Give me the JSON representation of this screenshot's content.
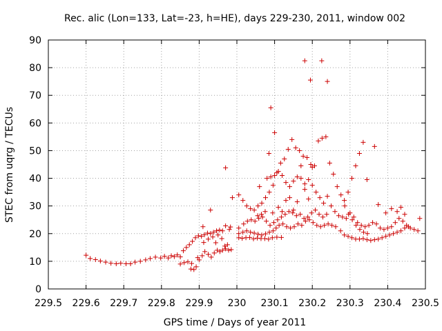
{
  "chart_data": {
    "type": "scatter",
    "title": "Rec. alic (Lon=133, Lat=-23, h=HE), days 229-230, 2011, window 002",
    "xlabel": "GPS time / Days of year 2011",
    "ylabel": "STEC from uqrg / TECUs",
    "xlim": [
      229.5,
      230.5
    ],
    "ylim": [
      0,
      90
    ],
    "x_ticks": [
      "229.5",
      "229.6",
      "229.7",
      "229.8",
      "229.9",
      "230",
      "230.1",
      "230.2",
      "230.3",
      "230.4",
      "230.5"
    ],
    "y_ticks": [
      "0",
      "10",
      "20",
      "30",
      "40",
      "50",
      "60",
      "70",
      "80",
      "90"
    ],
    "grid": true,
    "legend": "none",
    "marker": "+",
    "color": "#cc0000",
    "points": [
      [
        229.6,
        12.2
      ],
      [
        229.611,
        11.0
      ],
      [
        229.625,
        10.6
      ],
      [
        229.638,
        10.1
      ],
      [
        229.652,
        9.7
      ],
      [
        229.666,
        9.3
      ],
      [
        229.68,
        9.1
      ],
      [
        229.692,
        9.3
      ],
      [
        229.706,
        9.1
      ],
      [
        229.718,
        9.1
      ],
      [
        229.73,
        9.7
      ],
      [
        229.744,
        10.0
      ],
      [
        229.758,
        10.5
      ],
      [
        229.77,
        11.0
      ],
      [
        229.784,
        11.5
      ],
      [
        229.798,
        11.2
      ],
      [
        229.808,
        11.8
      ],
      [
        229.818,
        11.2
      ],
      [
        229.826,
        12.0
      ],
      [
        229.834,
        11.7
      ],
      [
        229.842,
        12.3
      ],
      [
        229.85,
        11.6
      ],
      [
        229.858,
        13.8
      ],
      [
        229.866,
        15.0
      ],
      [
        229.874,
        16.0
      ],
      [
        229.882,
        17.2
      ],
      [
        229.89,
        18.5
      ],
      [
        229.898,
        19.2
      ],
      [
        229.906,
        19.0
      ],
      [
        229.914,
        19.6
      ],
      [
        229.922,
        20.2
      ],
      [
        229.93,
        20.0
      ],
      [
        229.938,
        20.5
      ],
      [
        229.946,
        21.0
      ],
      [
        229.954,
        21.3
      ],
      [
        229.962,
        21.0
      ],
      [
        229.85,
        9.0
      ],
      [
        229.86,
        9.5
      ],
      [
        229.87,
        9.8
      ],
      [
        229.878,
        7.2
      ],
      [
        229.886,
        7.0
      ],
      [
        229.892,
        8.0
      ],
      [
        229.9,
        10.5
      ],
      [
        229.908,
        12.0
      ],
      [
        229.915,
        13.5
      ],
      [
        229.924,
        12.5
      ],
      [
        229.932,
        11.5
      ],
      [
        229.94,
        13.0
      ],
      [
        229.948,
        14.0
      ],
      [
        229.955,
        13.5
      ],
      [
        229.962,
        14.0
      ],
      [
        229.97,
        14.5
      ],
      [
        229.978,
        14.0
      ],
      [
        229.88,
        9.2
      ],
      [
        229.896,
        11.3
      ],
      [
        229.912,
        16.8
      ],
      [
        229.924,
        18.0
      ],
      [
        229.936,
        18.8
      ],
      [
        229.944,
        16.7
      ],
      [
        229.95,
        19.5
      ],
      [
        229.96,
        18.2
      ],
      [
        229.968,
        15.5
      ],
      [
        229.975,
        16.0
      ],
      [
        229.985,
        14.2
      ],
      [
        229.91,
        22.5
      ],
      [
        229.93,
        28.5
      ],
      [
        229.97,
        22.8
      ],
      [
        229.98,
        21.5
      ],
      [
        229.983,
        22.4
      ],
      [
        229.988,
        33.0
      ],
      [
        229.97,
        43.8
      ],
      [
        230.005,
        18.5
      ],
      [
        230.014,
        18.3
      ],
      [
        230.024,
        18.5
      ],
      [
        230.034,
        18.6
      ],
      [
        230.044,
        18.1
      ],
      [
        230.054,
        18.4
      ],
      [
        230.064,
        18.2
      ],
      [
        230.074,
        18.2
      ],
      [
        230.084,
        18.0
      ],
      [
        230.094,
        18.5
      ],
      [
        230.106,
        18.7
      ],
      [
        230.118,
        18.6
      ],
      [
        230.005,
        20.0
      ],
      [
        230.016,
        20.5
      ],
      [
        230.026,
        21.0
      ],
      [
        230.036,
        20.5
      ],
      [
        230.046,
        20.2
      ],
      [
        230.056,
        19.8
      ],
      [
        230.066,
        19.5
      ],
      [
        230.076,
        19.9
      ],
      [
        230.086,
        20.5
      ],
      [
        230.096,
        21.0
      ],
      [
        230.104,
        22.0
      ],
      [
        230.112,
        23.0
      ],
      [
        230.122,
        23.5
      ],
      [
        230.132,
        22.5
      ],
      [
        230.142,
        22.0
      ],
      [
        230.152,
        22.5
      ],
      [
        230.162,
        23.5
      ],
      [
        230.172,
        23.0
      ],
      [
        230.182,
        24.5
      ],
      [
        230.192,
        25.0
      ],
      [
        230.202,
        24.0
      ],
      [
        230.212,
        23.0
      ],
      [
        230.222,
        22.5
      ],
      [
        230.232,
        23.0
      ],
      [
        230.242,
        23.5
      ],
      [
        230.252,
        23.0
      ],
      [
        230.262,
        22.5
      ],
      [
        230.005,
        22.0
      ],
      [
        230.018,
        23.5
      ],
      [
        230.028,
        24.5
      ],
      [
        230.038,
        25.0
      ],
      [
        230.048,
        24.5
      ],
      [
        230.058,
        25.5
      ],
      [
        230.068,
        26.0
      ],
      [
        230.078,
        24.5
      ],
      [
        230.088,
        23.0
      ],
      [
        230.098,
        24.0
      ],
      [
        230.108,
        25.0
      ],
      [
        230.118,
        26.0
      ],
      [
        230.128,
        27.0
      ],
      [
        230.138,
        28.0
      ],
      [
        230.148,
        27.5
      ],
      [
        230.158,
        26.5
      ],
      [
        230.168,
        27.0
      ],
      [
        230.178,
        25.5
      ],
      [
        230.188,
        26.0
      ],
      [
        230.198,
        27.5
      ],
      [
        230.208,
        28.5
      ],
      [
        230.218,
        27.0
      ],
      [
        230.228,
        26.0
      ],
      [
        230.238,
        27.0
      ],
      [
        230.005,
        34.0
      ],
      [
        230.016,
        32.0
      ],
      [
        230.026,
        30.0
      ],
      [
        230.036,
        29.0
      ],
      [
        230.046,
        28.5
      ],
      [
        230.056,
        30.0
      ],
      [
        230.066,
        31.0
      ],
      [
        230.076,
        33.0
      ],
      [
        230.086,
        35.0
      ],
      [
        230.096,
        37.5
      ],
      [
        230.106,
        42.0
      ],
      [
        230.116,
        45.5
      ],
      [
        230.126,
        47.0
      ],
      [
        230.136,
        50.5
      ],
      [
        230.146,
        54.0
      ],
      [
        230.156,
        51.0
      ],
      [
        230.166,
        50.0
      ],
      [
        230.176,
        48.0
      ],
      [
        230.186,
        47.5
      ],
      [
        230.196,
        45.0
      ],
      [
        230.206,
        44.5
      ],
      [
        230.216,
        53.5
      ],
      [
        230.226,
        54.5
      ],
      [
        230.236,
        55.0
      ],
      [
        230.246,
        45.5
      ],
      [
        230.256,
        41.5
      ],
      [
        230.266,
        37.0
      ],
      [
        230.276,
        34.0
      ],
      [
        230.286,
        30.0
      ],
      [
        230.296,
        27.0
      ],
      [
        230.306,
        25.0
      ],
      [
        230.316,
        23.0
      ],
      [
        230.326,
        21.5
      ],
      [
        230.336,
        20.5
      ],
      [
        230.346,
        20.0
      ],
      [
        230.06,
        37.0
      ],
      [
        230.08,
        40.0
      ],
      [
        230.09,
        40.5
      ],
      [
        230.1,
        41.0
      ],
      [
        230.11,
        42.5
      ],
      [
        230.12,
        41.0
      ],
      [
        230.13,
        38.5
      ],
      [
        230.14,
        37.0
      ],
      [
        230.15,
        39.0
      ],
      [
        230.16,
        40.5
      ],
      [
        230.17,
        40.0
      ],
      [
        230.18,
        38.0
      ],
      [
        230.19,
        39.5
      ],
      [
        230.2,
        37.5
      ],
      [
        230.21,
        35.0
      ],
      [
        230.22,
        33.0
      ],
      [
        230.23,
        31.0
      ],
      [
        230.24,
        33.5
      ],
      [
        230.25,
        30.0
      ],
      [
        230.26,
        28.0
      ],
      [
        230.27,
        26.5
      ],
      [
        230.28,
        26.0
      ],
      [
        230.29,
        25.5
      ],
      [
        230.3,
        27.5
      ],
      [
        230.31,
        26.0
      ],
      [
        230.32,
        24.0
      ],
      [
        230.33,
        23.0
      ],
      [
        230.34,
        22.5
      ],
      [
        230.35,
        23.0
      ],
      [
        230.36,
        24.0
      ],
      [
        230.37,
        23.5
      ],
      [
        230.38,
        22.0
      ],
      [
        230.39,
        21.5
      ],
      [
        230.4,
        22.0
      ],
      [
        230.41,
        22.5
      ],
      [
        230.42,
        24.0
      ],
      [
        230.43,
        25.5
      ],
      [
        230.44,
        24.5
      ],
      [
        230.45,
        23.0
      ],
      [
        230.46,
        22.0
      ],
      [
        230.47,
        21.5
      ],
      [
        230.48,
        21.0
      ],
      [
        230.275,
        21.0
      ],
      [
        230.285,
        19.5
      ],
      [
        230.295,
        19.0
      ],
      [
        230.305,
        18.5
      ],
      [
        230.315,
        18.0
      ],
      [
        230.325,
        18.0
      ],
      [
        230.335,
        18.2
      ],
      [
        230.345,
        17.8
      ],
      [
        230.355,
        17.5
      ],
      [
        230.365,
        17.8
      ],
      [
        230.375,
        18.0
      ],
      [
        230.385,
        18.5
      ],
      [
        230.395,
        19.0
      ],
      [
        230.405,
        19.5
      ],
      [
        230.415,
        20.0
      ],
      [
        230.425,
        20.5
      ],
      [
        230.435,
        21.0
      ],
      [
        230.445,
        22.0
      ],
      [
        230.455,
        22.5
      ],
      [
        230.285,
        32.0
      ],
      [
        230.295,
        35.0
      ],
      [
        230.305,
        40.0
      ],
      [
        230.315,
        44.5
      ],
      [
        230.325,
        49.0
      ],
      [
        230.335,
        53.0
      ],
      [
        230.345,
        39.5
      ],
      [
        230.365,
        51.5
      ],
      [
        230.375,
        30.5
      ],
      [
        230.395,
        27.5
      ],
      [
        230.41,
        29.0
      ],
      [
        230.425,
        28.0
      ],
      [
        230.435,
        29.5
      ],
      [
        230.445,
        27.0
      ],
      [
        230.485,
        25.5
      ],
      [
        230.1,
        56.5
      ],
      [
        230.085,
        49.0
      ],
      [
        230.09,
        65.5
      ],
      [
        230.18,
        82.5
      ],
      [
        230.225,
        82.5
      ],
      [
        230.195,
        75.5
      ],
      [
        230.24,
        75.0
      ],
      [
        230.17,
        44.5
      ],
      [
        230.2,
        44.0
      ],
      [
        230.18,
        36.0
      ],
      [
        230.19,
        32.5
      ],
      [
        230.16,
        31.5
      ],
      [
        230.15,
        28.5
      ],
      [
        230.14,
        33.0
      ],
      [
        230.12,
        28.0
      ],
      [
        230.13,
        32.0
      ],
      [
        230.11,
        29.5
      ],
      [
        230.095,
        27.5
      ],
      [
        230.075,
        28.0
      ],
      [
        230.065,
        27.0
      ],
      [
        230.055,
        26.5
      ]
    ]
  }
}
